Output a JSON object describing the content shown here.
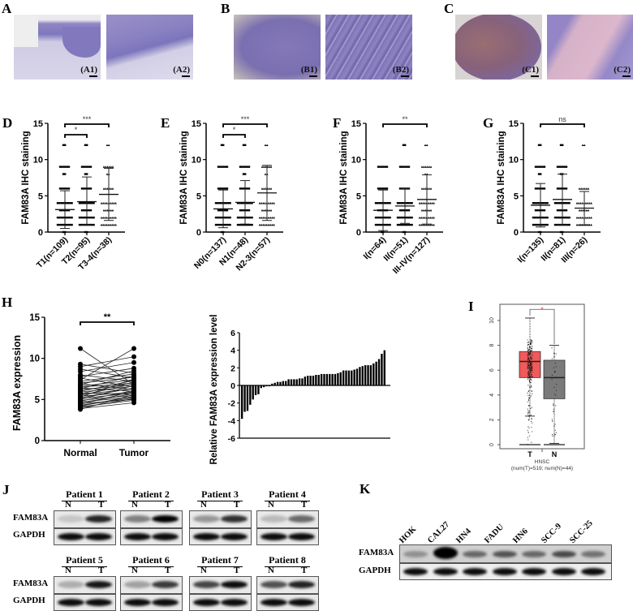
{
  "panels": {
    "A": {
      "label": "A",
      "images": [
        {
          "label": "(A1)"
        },
        {
          "label": "(A2)"
        }
      ]
    },
    "B": {
      "label": "B",
      "images": [
        {
          "label": "(B1)"
        },
        {
          "label": "(B2)"
        }
      ]
    },
    "C": {
      "label": "C",
      "images": [
        {
          "label": "(C1)"
        },
        {
          "label": "(C2)"
        }
      ]
    },
    "D": {
      "label": "D"
    },
    "E": {
      "label": "E"
    },
    "F": {
      "label": "F"
    },
    "G": {
      "label": "G"
    },
    "H": {
      "label": "H"
    },
    "I": {
      "label": "I"
    },
    "J": {
      "label": "J"
    },
    "K": {
      "label": "K"
    }
  },
  "colors": {
    "tumor_box": "#f05a5a",
    "normal_box": "#7a7a7a",
    "sig_star_I": "#e03030",
    "he_purple": "#9a8fc8",
    "ihc_brown": "#8a6a70"
  },
  "chart_data": [
    {
      "id": "D",
      "type": "scatter",
      "title": "",
      "ylabel": "FAM83A IHC staining",
      "ylim": [
        0,
        15
      ],
      "yticks": [
        0,
        5,
        10,
        15
      ],
      "categories": [
        "T1(n=109)",
        "T2(n=95)",
        "T3-4(n=38)"
      ],
      "means": [
        3.1,
        4.2,
        5.2
      ],
      "sd_upper": [
        5.7,
        7.6,
        8.8
      ],
      "sd_lower": [
        0.5,
        1.0,
        1.6
      ],
      "point_levels": [
        [
          0,
          1,
          2,
          3,
          4,
          6,
          8,
          9,
          12
        ],
        [
          0,
          1,
          2,
          3,
          4,
          6,
          8,
          9,
          12
        ],
        [
          1,
          2,
          3,
          4,
          6,
          8,
          9,
          12
        ]
      ],
      "significance": [
        {
          "from": 0,
          "to": 1,
          "label": "*"
        },
        {
          "from": 0,
          "to": 2,
          "label": "***"
        }
      ]
    },
    {
      "id": "E",
      "type": "scatter",
      "ylabel": "FAM83A IHC staining",
      "ylim": [
        0,
        15
      ],
      "yticks": [
        0,
        5,
        10,
        15
      ],
      "categories": [
        "N0(n=137)",
        "N1(n=48)",
        "N2-3(n=57)"
      ],
      "means": [
        3.2,
        4.1,
        5.4
      ],
      "sd_upper": [
        5.8,
        7.1,
        9.2
      ],
      "sd_lower": [
        0.6,
        1.1,
        1.6
      ],
      "point_levels": [
        [
          0,
          1,
          2,
          3,
          4,
          6,
          9,
          12
        ],
        [
          1,
          2,
          3,
          4,
          6,
          8,
          9,
          12
        ],
        [
          1,
          2,
          3,
          4,
          6,
          8,
          9,
          12
        ]
      ],
      "significance": [
        {
          "from": 0,
          "to": 1,
          "label": "*"
        },
        {
          "from": 0,
          "to": 2,
          "label": "***"
        }
      ]
    },
    {
      "id": "F",
      "type": "scatter",
      "ylabel": "FAM83A IHC staining",
      "ylim": [
        0,
        15
      ],
      "yticks": [
        0,
        5,
        10,
        15
      ],
      "categories": [
        "I(n=64)",
        "II(n=51)",
        "III-IV(n=127)"
      ],
      "means": [
        3.0,
        3.6,
        4.5
      ],
      "sd_upper": [
        5.8,
        6.0,
        7.9
      ],
      "sd_lower": [
        0.2,
        1.2,
        1.1
      ],
      "point_levels": [
        [
          0,
          1,
          2,
          3,
          4,
          6,
          9
        ],
        [
          0,
          1,
          2,
          3,
          4,
          6,
          9,
          12
        ],
        [
          1,
          2,
          3,
          4,
          6,
          8,
          9,
          12
        ]
      ],
      "significance": [
        {
          "from": 0,
          "to": 2,
          "label": "**"
        }
      ]
    },
    {
      "id": "G",
      "type": "scatter",
      "ylabel": "FAM83A IHC staining",
      "ylim": [
        0,
        15
      ],
      "yticks": [
        0,
        5,
        10,
        15
      ],
      "categories": [
        "I(n=135)",
        "II(n=81)",
        "III(n=26)"
      ],
      "means": [
        3.7,
        4.5,
        3.3
      ],
      "sd_upper": [
        6.7,
        8.0,
        5.6
      ],
      "sd_lower": [
        0.7,
        1.0,
        1.0
      ],
      "point_levels": [
        [
          0,
          1,
          2,
          3,
          4,
          6,
          8,
          9,
          12
        ],
        [
          0,
          1,
          2,
          3,
          4,
          6,
          8,
          9,
          12
        ],
        [
          1,
          2,
          3,
          4,
          6,
          12
        ]
      ],
      "significance": [
        {
          "from": 0,
          "to": 2,
          "label": "ns"
        }
      ]
    },
    {
      "id": "H-left",
      "type": "line",
      "ylabel": "FAM83A expression",
      "ylim": [
        0,
        15
      ],
      "yticks": [
        0,
        5,
        10,
        15
      ],
      "categories": [
        "Normal",
        "Tumor"
      ],
      "pairs": [
        [
          11.2,
          6.8
        ],
        [
          9.3,
          8.2
        ],
        [
          9.0,
          10.2
        ],
        [
          8.7,
          7.6
        ],
        [
          8.4,
          9.5
        ],
        [
          8.0,
          7.2
        ],
        [
          7.8,
          8.8
        ],
        [
          7.6,
          6.5
        ],
        [
          7.4,
          11.2
        ],
        [
          7.2,
          8.1
        ],
        [
          7.0,
          7.7
        ],
        [
          6.9,
          6.2
        ],
        [
          6.8,
          8.5
        ],
        [
          6.6,
          7.4
        ],
        [
          6.5,
          7.0
        ],
        [
          6.4,
          6.0
        ],
        [
          6.3,
          7.9
        ],
        [
          6.2,
          6.8
        ],
        [
          6.0,
          7.3
        ],
        [
          5.9,
          6.6
        ],
        [
          5.8,
          5.6
        ],
        [
          5.7,
          7.1
        ],
        [
          5.6,
          6.3
        ],
        [
          5.5,
          6.9
        ],
        [
          5.4,
          5.9
        ],
        [
          5.3,
          7.5
        ],
        [
          5.2,
          6.4
        ],
        [
          5.1,
          5.8
        ],
        [
          5.0,
          6.7
        ],
        [
          4.9,
          5.5
        ],
        [
          4.8,
          6.1
        ],
        [
          4.7,
          5.3
        ],
        [
          4.6,
          5.7
        ],
        [
          4.5,
          5.0
        ],
        [
          4.4,
          6.0
        ],
        [
          4.3,
          5.2
        ],
        [
          4.2,
          5.4
        ],
        [
          4.1,
          4.9
        ],
        [
          4.0,
          5.1
        ],
        [
          3.9,
          4.6
        ],
        [
          3.8,
          5.6
        ]
      ],
      "significance": [
        {
          "from": 0,
          "to": 1,
          "label": "**"
        }
      ]
    },
    {
      "id": "H-right",
      "type": "bar",
      "ylabel": "Relative FAM83A expression level",
      "ylim": [
        -6,
        6
      ],
      "yticks": [
        -6,
        -4,
        -2,
        0,
        2,
        4,
        6
      ],
      "values": [
        -3.8,
        -3.0,
        -2.9,
        -2.2,
        -1.6,
        -1.1,
        -1.0,
        -0.3,
        -0.2,
        -0.1,
        -0.1,
        0.2,
        0.3,
        0.4,
        0.4,
        0.5,
        0.5,
        0.7,
        0.7,
        0.7,
        0.7,
        0.8,
        0.8,
        1.0,
        1.1,
        1.1,
        1.1,
        1.2,
        1.2,
        1.3,
        1.3,
        1.3,
        1.3,
        1.3,
        1.3,
        1.4,
        1.5,
        1.7,
        1.7,
        1.7,
        1.7,
        1.8,
        1.9,
        2.1,
        2.2,
        2.3,
        2.3,
        2.3,
        2.5,
        2.7,
        3.0,
        3.6,
        4.0
      ]
    },
    {
      "id": "I",
      "type": "box",
      "yticks": [
        0,
        2,
        4,
        6,
        8,
        10
      ],
      "ylim": [
        0,
        10.8
      ],
      "categories": [
        "T",
        "N"
      ],
      "xlabel": "HNSC",
      "subtitle": "(num(T)=519; num(N)=44)",
      "boxes": [
        {
          "name": "T",
          "whisker_low": 2.3,
          "q1": 5.4,
          "median": 6.7,
          "q3": 7.5,
          "whisker_high": 10.2,
          "color": "#f05a5a"
        },
        {
          "name": "N",
          "whisker_low": 0.1,
          "q1": 3.7,
          "median": 5.4,
          "q3": 6.8,
          "whisker_high": 8.0,
          "color": "#7a7a7a"
        }
      ],
      "significance": [
        {
          "from": 0,
          "to": 1,
          "label": "*"
        }
      ]
    }
  ],
  "western_J": {
    "row_labels": [
      "FAM83A",
      "GAPDH"
    ],
    "lane_labels": [
      "N",
      "T"
    ],
    "patients": [
      {
        "name": "Patient 1",
        "fam": [
          0.15,
          0.85
        ]
      },
      {
        "name": "Patient 2",
        "fam": [
          0.45,
          1.0
        ]
      },
      {
        "name": "Patient 3",
        "fam": [
          0.35,
          0.8
        ]
      },
      {
        "name": "Patient 4",
        "fam": [
          0.2,
          0.55
        ]
      },
      {
        "name": "Patient 5",
        "fam": [
          0.25,
          0.9
        ]
      },
      {
        "name": "Patient 6",
        "fam": [
          0.3,
          0.75
        ]
      },
      {
        "name": "Patient 7",
        "fam": [
          0.7,
          0.95
        ]
      },
      {
        "name": "Patient 8",
        "fam": [
          0.65,
          0.85
        ]
      }
    ]
  },
  "western_K": {
    "row_labels": [
      "FAM83A",
      "GAPDH"
    ],
    "lanes": [
      "HOK",
      "CAL27",
      "HN4",
      "FADU",
      "HN6",
      "SCC-9",
      "SCC-25"
    ],
    "fam": [
      0.3,
      1.0,
      0.5,
      0.6,
      0.5,
      0.65,
      0.45
    ]
  }
}
